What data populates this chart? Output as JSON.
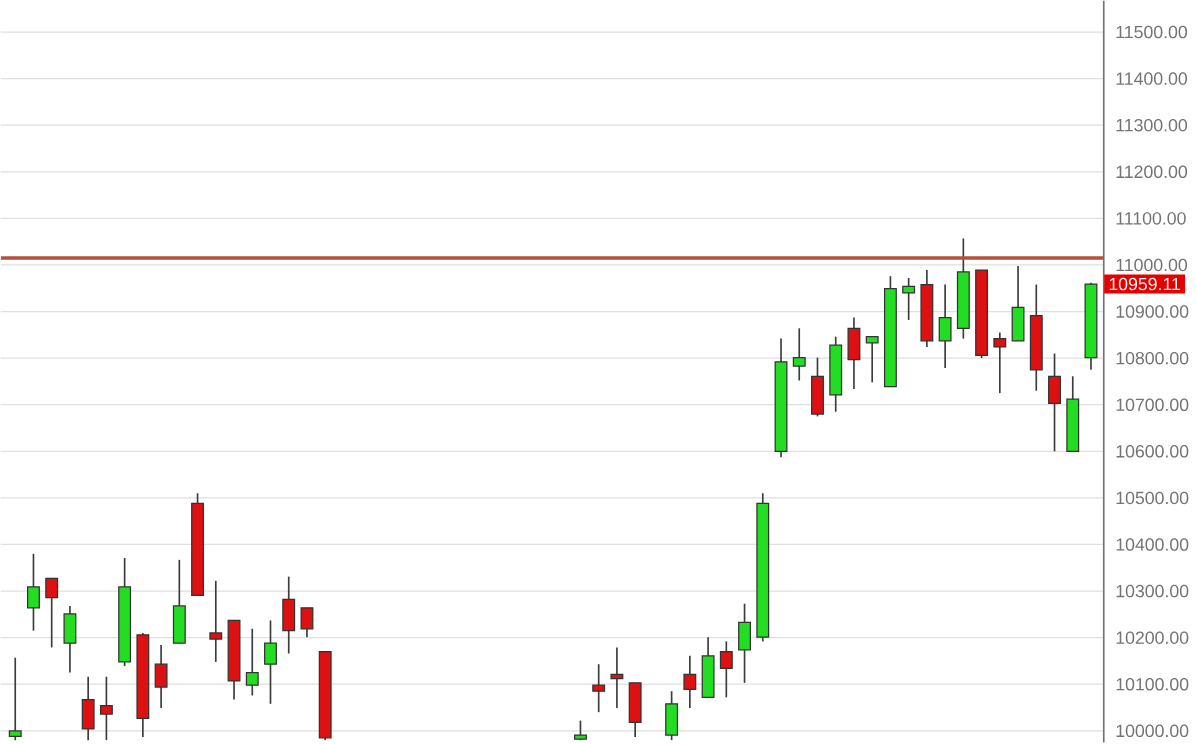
{
  "chart_data": {
    "type": "candlestick",
    "categories": [
      null,
      null,
      null,
      null,
      null,
      null,
      null,
      null,
      null,
      null,
      null,
      null,
      null,
      null,
      null,
      null,
      null,
      null,
      null,
      null,
      null,
      null,
      null,
      null,
      null,
      null,
      null,
      null,
      null,
      null,
      null,
      null,
      null,
      null,
      null,
      null,
      null,
      null,
      null,
      null,
      null,
      null,
      null,
      null,
      null,
      null,
      null,
      null,
      null,
      null,
      null,
      null,
      null,
      null,
      null,
      null,
      null,
      null,
      null,
      null
    ],
    "ohlc": [
      [
        9988,
        10157,
        9980,
        10000
      ],
      [
        10264,
        10380,
        10215,
        10309
      ],
      [
        10327,
        10327,
        10179,
        10286
      ],
      [
        10188,
        10268,
        10125,
        10251
      ],
      [
        10067,
        10116,
        9980,
        10004
      ],
      [
        10054,
        10116,
        9980,
        10036
      ],
      [
        10148,
        10371,
        10139,
        10309
      ],
      [
        10206,
        10210,
        9987,
        10027
      ],
      [
        10143,
        10184,
        10049,
        10094
      ],
      [
        10188,
        10367,
        10188,
        10268
      ],
      [
        10488,
        10510,
        10291,
        10291
      ],
      [
        10210,
        10322,
        10148,
        10197
      ],
      [
        10237,
        10237,
        10067,
        10107
      ],
      [
        10098,
        10219,
        10076,
        10125
      ],
      [
        10143,
        10237,
        10058,
        10188
      ],
      [
        10282,
        10331,
        10166,
        10215
      ],
      [
        10264,
        10264,
        10201,
        10219
      ],
      [
        10170,
        10170,
        9980,
        9985
      ],
      null,
      null,
      null,
      null,
      null,
      null,
      null,
      null,
      null,
      null,
      null,
      null,
      null,
      [
        9982,
        10022,
        9980,
        9991
      ],
      [
        10098,
        10143,
        10040,
        10085
      ],
      [
        10121,
        10179,
        10049,
        10112
      ],
      [
        10103,
        10103,
        9987,
        10018
      ],
      null,
      [
        9991,
        10085,
        9980,
        10058
      ],
      [
        10121,
        10161,
        10049,
        10089
      ],
      [
        10072,
        10201,
        10072,
        10161
      ],
      [
        10170,
        10192,
        10072,
        10134
      ],
      [
        10174,
        10273,
        10103,
        10233
      ],
      [
        10201,
        10510,
        10192,
        10488
      ],
      [
        10600,
        10842,
        10587,
        10792
      ],
      [
        10783,
        10864,
        10752,
        10801
      ],
      [
        10761,
        10801,
        10675,
        10680
      ],
      [
        10721,
        10846,
        10685,
        10828
      ],
      [
        10864,
        10887,
        10734,
        10797
      ],
      [
        10833,
        10846,
        10748,
        10846
      ],
      [
        10739,
        10976,
        10739,
        10949
      ],
      [
        10940,
        10972,
        10882,
        10954
      ],
      [
        10958,
        10989,
        10824,
        10837
      ],
      [
        10837,
        10958,
        10779,
        10887
      ],
      [
        10864,
        11057,
        10842,
        10985
      ],
      [
        10989,
        10989,
        10800,
        10806
      ],
      [
        10842,
        10855,
        10725,
        10824
      ],
      [
        10837,
        10998,
        10837,
        10909
      ],
      [
        10891,
        10958,
        10730,
        10775
      ],
      [
        10761,
        10810,
        10600,
        10703
      ],
      [
        10600,
        10761,
        10600,
        10712
      ],
      [
        10801,
        10962,
        10775,
        10959.11
      ]
    ],
    "ylim": [
      9975,
      11567
    ],
    "yticks": [
      {
        "value": 10000,
        "label": "10000.00"
      },
      {
        "value": 10100,
        "label": "10100.00"
      },
      {
        "value": 10200,
        "label": "10200.00"
      },
      {
        "value": 10300,
        "label": "10300.00"
      },
      {
        "value": 10400,
        "label": "10400.00"
      },
      {
        "value": 10500,
        "label": "10500.00"
      },
      {
        "value": 10600,
        "label": "10600.00"
      },
      {
        "value": 10700,
        "label": "10700.00"
      },
      {
        "value": 10800,
        "label": "10800.00"
      },
      {
        "value": 10900,
        "label": "10900.00"
      },
      {
        "value": 11000,
        "label": "11000.00"
      },
      {
        "value": 11100,
        "label": "11100.00"
      },
      {
        "value": 11200,
        "label": "11200.00"
      },
      {
        "value": 11300,
        "label": "11300.00"
      },
      {
        "value": 11400,
        "label": "11400.00"
      },
      {
        "value": 11500,
        "label": "11500.00"
      }
    ],
    "grid": "y",
    "ref_lines": [
      {
        "axis": "y",
        "value": 11015,
        "color": "#b5503a"
      }
    ],
    "annotations": [
      "10959.11"
    ]
  }
}
